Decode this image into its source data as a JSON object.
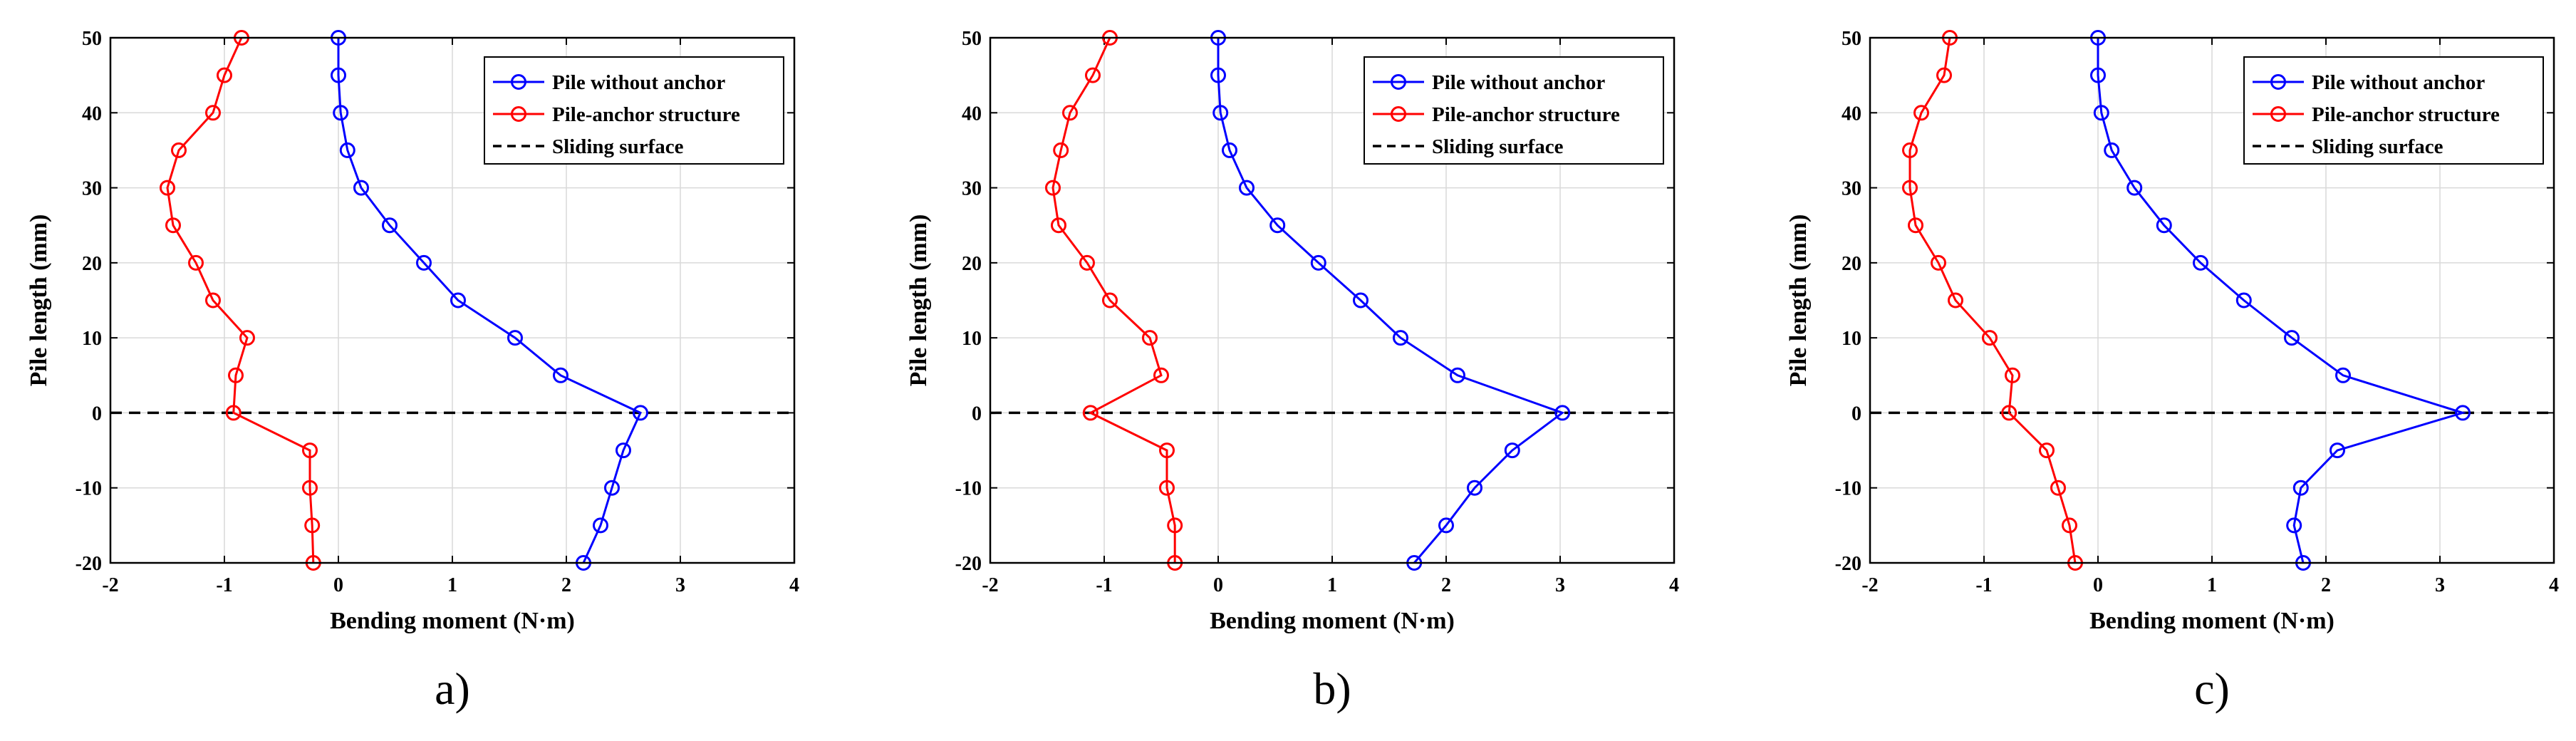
{
  "colors": {
    "without_anchor": "#0000ff",
    "pile_anchor": "#ff0000",
    "sliding": "#000000",
    "grid": "#d9d9d9"
  },
  "chart_data": [
    {
      "type": "line",
      "panel_label": "a)",
      "xlabel": "Bending moment (N·m)",
      "ylabel": "Pile length (mm)",
      "xlim": [
        -2,
        4
      ],
      "ylim": [
        -20,
        50
      ],
      "xticks": [
        -2,
        -1,
        0,
        1,
        2,
        3,
        4
      ],
      "yticks": [
        -20,
        -10,
        0,
        10,
        20,
        30,
        40,
        50
      ],
      "grid": true,
      "legend_position": "top-right",
      "y": [
        50,
        45,
        40,
        35,
        30,
        25,
        20,
        15,
        10,
        5,
        0,
        -5,
        -10,
        -15,
        -20
      ],
      "series": [
        {
          "name": "Pile without anchor",
          "marker": "circle",
          "x": [
            0.0,
            0.0,
            0.02,
            0.08,
            0.2,
            0.45,
            0.75,
            1.05,
            1.55,
            1.95,
            2.65,
            2.5,
            2.4,
            2.3,
            2.15
          ]
        },
        {
          "name": "Pile-anchor structure",
          "marker": "circle",
          "x": [
            -0.85,
            -1.0,
            -1.1,
            -1.4,
            -1.5,
            -1.45,
            -1.25,
            -1.1,
            -0.8,
            -0.9,
            -0.92,
            -0.25,
            -0.25,
            -0.23,
            -0.22
          ]
        }
      ],
      "reference_line": {
        "name": "Sliding surface",
        "y": 0,
        "style": "dashed"
      }
    },
    {
      "type": "line",
      "panel_label": "b)",
      "xlabel": "Bending moment (N·m)",
      "ylabel": "Pile length (mm)",
      "xlim": [
        -2,
        4
      ],
      "ylim": [
        -20,
        50
      ],
      "xticks": [
        -2,
        -1,
        0,
        1,
        2,
        3,
        4
      ],
      "yticks": [
        -20,
        -10,
        0,
        10,
        20,
        30,
        40,
        50
      ],
      "grid": true,
      "legend_position": "top-right",
      "y": [
        50,
        45,
        40,
        35,
        30,
        25,
        20,
        15,
        10,
        5,
        0,
        -5,
        -10,
        -15,
        -20
      ],
      "series": [
        {
          "name": "Pile without anchor",
          "marker": "circle",
          "x": [
            0.0,
            0.0,
            0.02,
            0.1,
            0.25,
            0.52,
            0.88,
            1.25,
            1.6,
            2.1,
            3.02,
            2.58,
            2.25,
            2.0,
            1.72
          ]
        },
        {
          "name": "Pile-anchor structure",
          "marker": "circle",
          "x": [
            -0.95,
            -1.1,
            -1.3,
            -1.38,
            -1.45,
            -1.4,
            -1.15,
            -0.95,
            -0.6,
            -0.5,
            -1.12,
            -0.45,
            -0.45,
            -0.38,
            -0.38
          ]
        }
      ],
      "reference_line": {
        "name": "Sliding surface",
        "y": 0,
        "style": "dashed"
      }
    },
    {
      "type": "line",
      "panel_label": "c)",
      "xlabel": "Bending moment (N·m)",
      "ylabel": "Pile length (mm)",
      "xlim": [
        -2,
        4
      ],
      "ylim": [
        -20,
        50
      ],
      "xticks": [
        -2,
        -1,
        0,
        1,
        2,
        3,
        4
      ],
      "yticks": [
        -20,
        -10,
        0,
        10,
        20,
        30,
        40,
        50
      ],
      "grid": true,
      "legend_position": "top-right",
      "y": [
        50,
        45,
        40,
        35,
        30,
        25,
        20,
        15,
        10,
        5,
        0,
        -5,
        -10,
        -15,
        -20
      ],
      "series": [
        {
          "name": "Pile without anchor",
          "marker": "circle",
          "x": [
            0.0,
            0.0,
            0.03,
            0.12,
            0.32,
            0.58,
            0.9,
            1.28,
            1.7,
            2.15,
            3.2,
            2.1,
            1.78,
            1.72,
            1.8
          ]
        },
        {
          "name": "Pile-anchor structure",
          "marker": "circle",
          "x": [
            -1.3,
            -1.35,
            -1.55,
            -1.65,
            -1.65,
            -1.6,
            -1.4,
            -1.25,
            -0.95,
            -0.75,
            -0.78,
            -0.45,
            -0.35,
            -0.25,
            -0.2
          ]
        }
      ],
      "reference_line": {
        "name": "Sliding surface",
        "y": 0,
        "style": "dashed"
      }
    }
  ]
}
